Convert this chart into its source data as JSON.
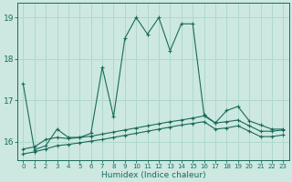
{
  "xlabel": "Humidex (Indice chaleur)",
  "x_values": [
    0,
    1,
    2,
    3,
    4,
    5,
    6,
    7,
    8,
    9,
    10,
    11,
    12,
    13,
    14,
    15,
    16,
    17,
    18,
    19,
    20,
    21,
    22,
    23
  ],
  "line1_y": [
    17.4,
    15.8,
    15.9,
    16.3,
    16.1,
    16.1,
    16.2,
    17.8,
    16.6,
    18.5,
    19.0,
    18.6,
    19.0,
    18.2,
    18.85,
    18.85,
    16.65,
    16.45,
    16.75,
    16.85,
    16.5,
    16.4,
    16.3,
    16.3
  ],
  "line2_y": [
    15.82,
    15.87,
    16.05,
    16.1,
    16.07,
    16.1,
    16.13,
    16.18,
    16.23,
    16.28,
    16.33,
    16.38,
    16.43,
    16.48,
    16.52,
    16.57,
    16.62,
    16.45,
    16.48,
    16.52,
    16.38,
    16.25,
    16.25,
    16.28
  ],
  "line3_y": [
    15.7,
    15.75,
    15.82,
    15.9,
    15.93,
    15.97,
    16.01,
    16.05,
    16.1,
    16.15,
    16.2,
    16.25,
    16.3,
    16.35,
    16.4,
    16.44,
    16.48,
    16.3,
    16.33,
    16.38,
    16.25,
    16.12,
    16.12,
    16.16
  ],
  "line_color": "#1a6b5a",
  "bg_color": "#cce8e0",
  "grid_color": "#b0d8cc",
  "ylim_min": 15.55,
  "ylim_max": 19.35,
  "yticks": [
    16,
    17,
    18,
    19
  ],
  "figw": 3.2,
  "figh": 2.0,
  "dpi": 100
}
